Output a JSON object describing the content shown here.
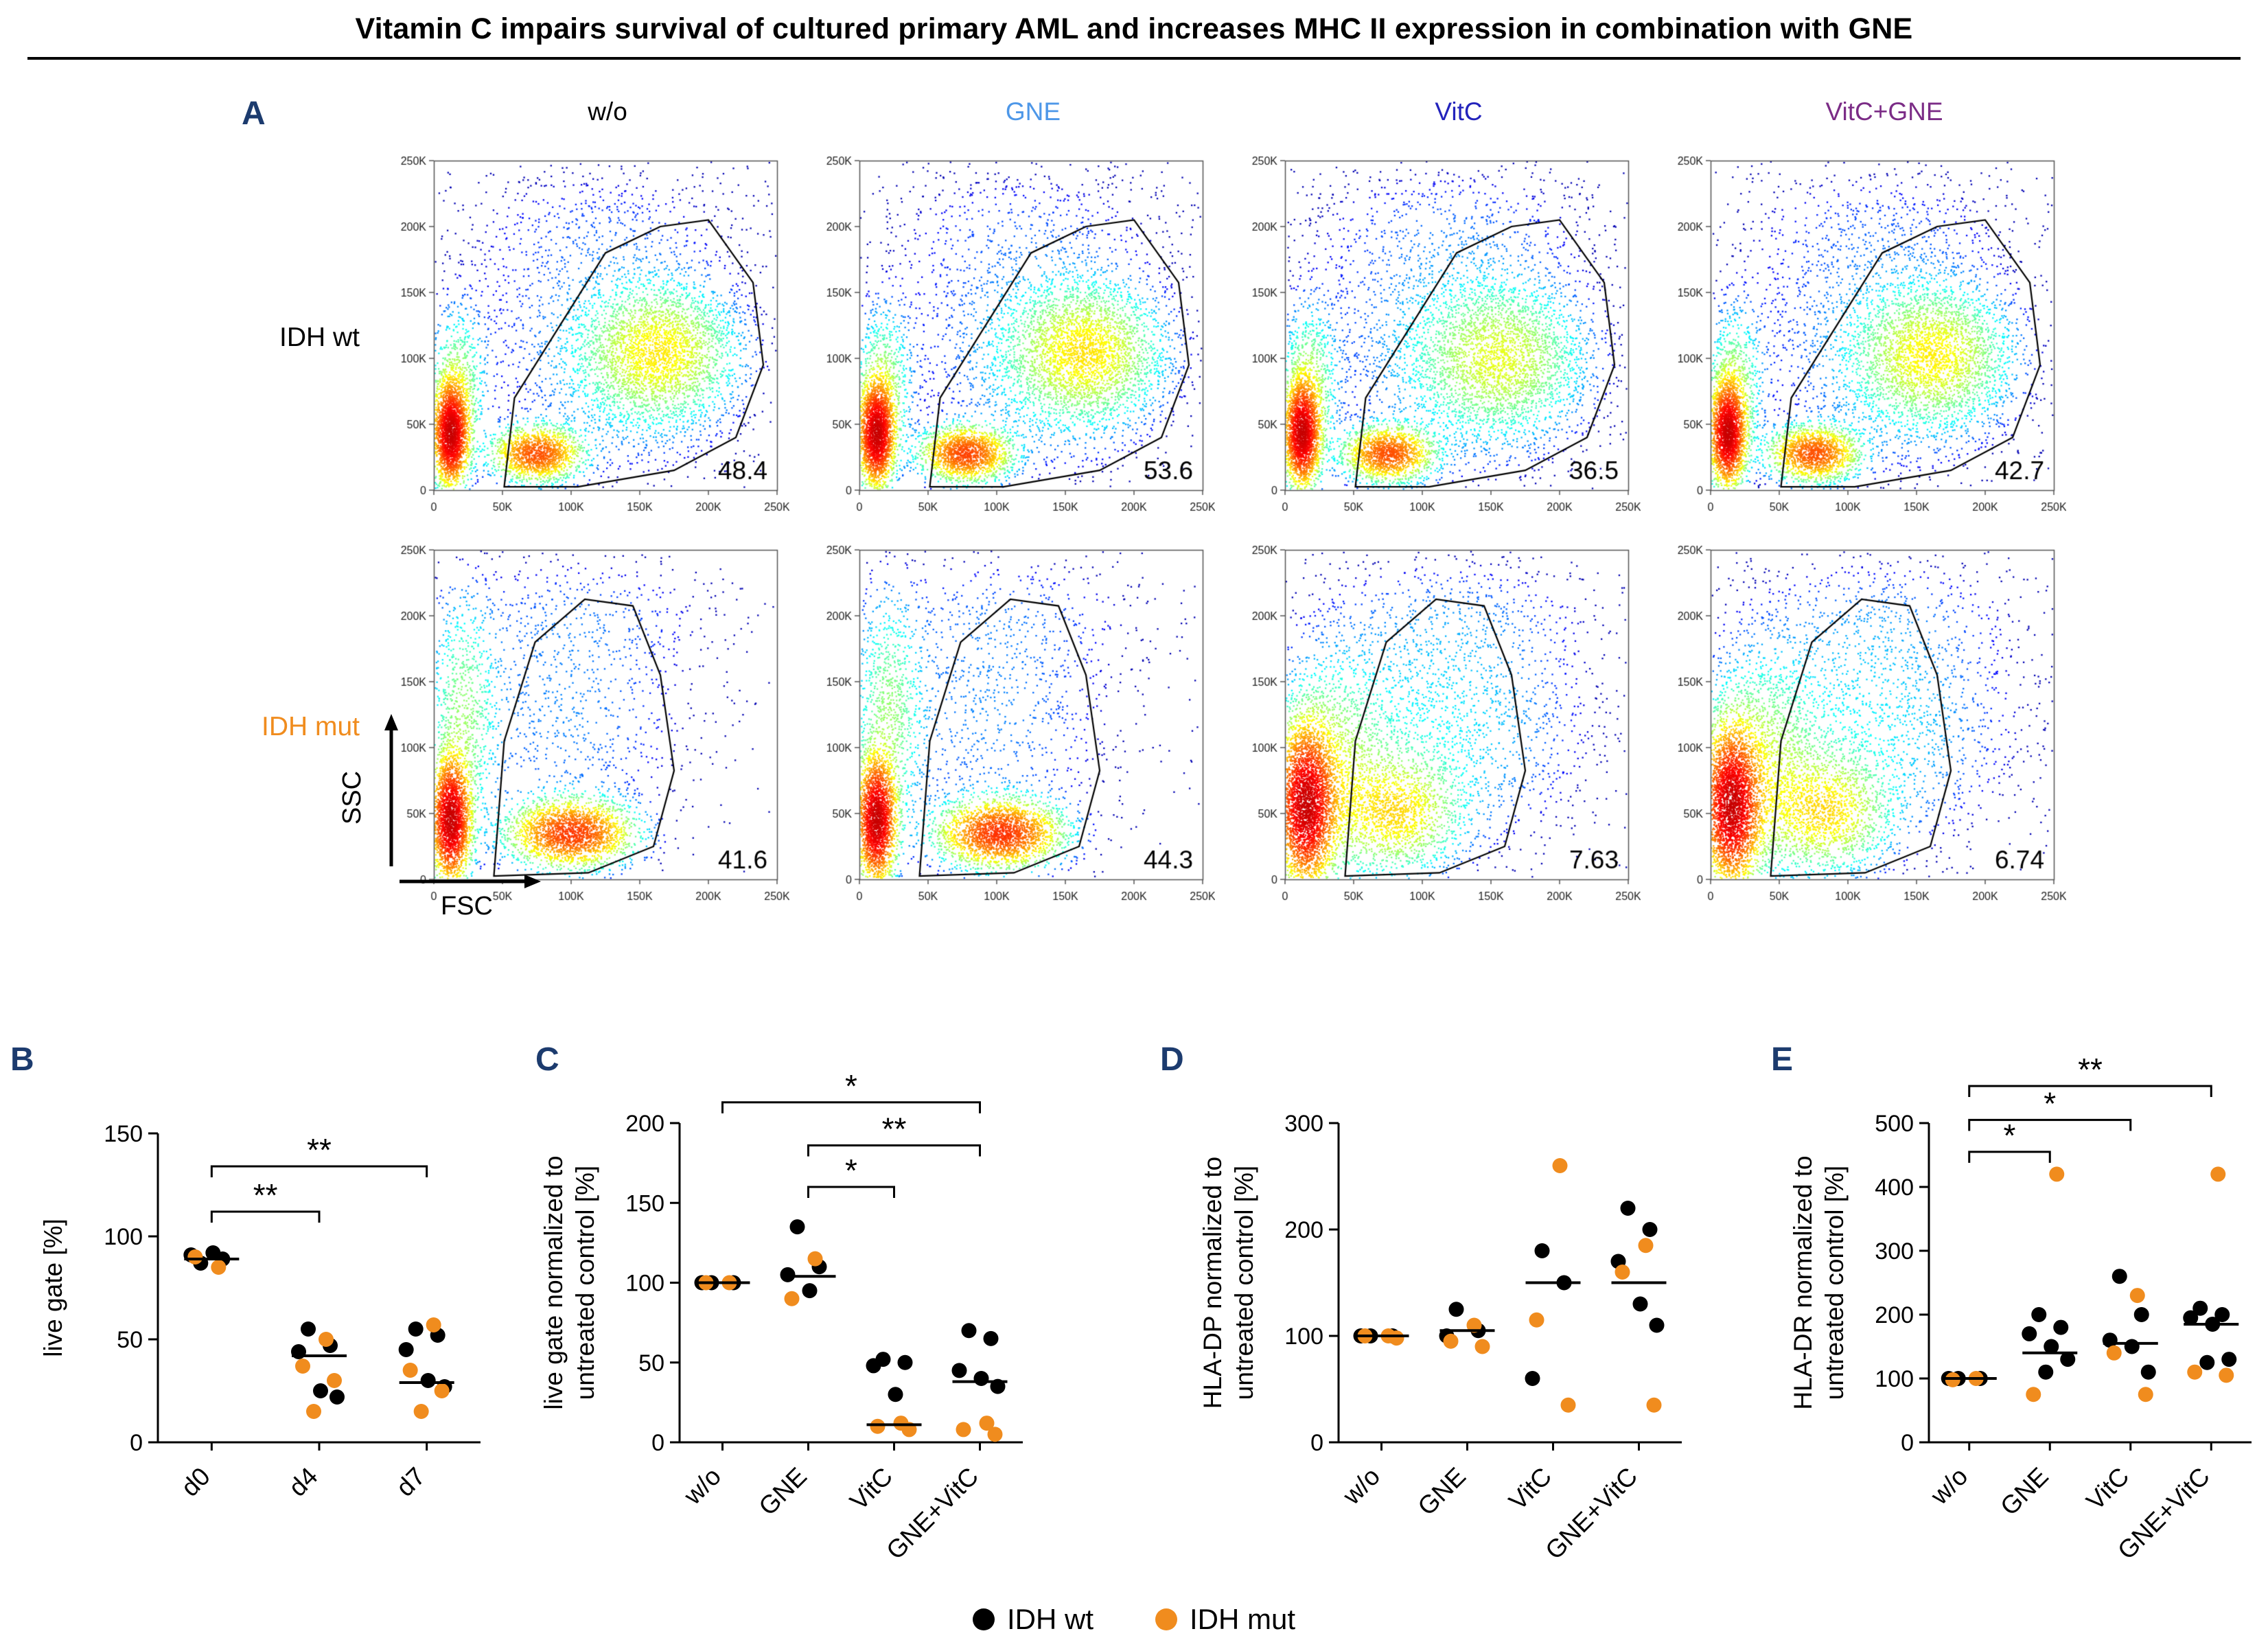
{
  "title": "Vitamin C impairs survival of cultured primary AML and increases MHC II expression in combination with GNE",
  "legend": [
    {
      "label": "IDH wt",
      "color": "#000000"
    },
    {
      "label": "IDH mut",
      "color": "#F08C1E"
    }
  ],
  "chart_data": [
    {
      "panel": "A",
      "type": "flow_density_grid",
      "xlabel": "FSC",
      "ylabel": "SSC",
      "axis_ticks": [
        "0",
        "50K",
        "100K",
        "150K",
        "200K",
        "250K"
      ],
      "axis_range": [
        0,
        250000
      ],
      "columns": [
        {
          "label": "w/o",
          "color": "#000000"
        },
        {
          "label": "GNE",
          "color": "#4D97E8"
        },
        {
          "label": "VitC",
          "color": "#2323BC"
        },
        {
          "label": "VitC+GNE",
          "color": "#7B2C86"
        }
      ],
      "rows": [
        {
          "label": "IDH wt",
          "color": "#000000"
        },
        {
          "label": "IDH mut",
          "color": "#F08C1E"
        }
      ],
      "gate_percent": [
        [
          "48.4",
          "53.6",
          "36.5",
          "42.7"
        ],
        [
          "41.6",
          "44.3",
          "7.63",
          "6.74"
        ]
      ],
      "gates": {
        "r1": [
          [
            0.205,
            0.01
          ],
          [
            0.235,
            0.28
          ],
          [
            0.5,
            0.72
          ],
          [
            0.66,
            0.8
          ],
          [
            0.8,
            0.82
          ],
          [
            0.93,
            0.63
          ],
          [
            0.96,
            0.38
          ],
          [
            0.88,
            0.16
          ],
          [
            0.7,
            0.06
          ],
          [
            0.42,
            0.01
          ]
        ],
        "r2": [
          [
            0.175,
            0.01
          ],
          [
            0.205,
            0.42
          ],
          [
            0.295,
            0.72
          ],
          [
            0.44,
            0.85
          ],
          [
            0.58,
            0.83
          ],
          [
            0.66,
            0.62
          ],
          [
            0.7,
            0.33
          ],
          [
            0.64,
            0.1
          ],
          [
            0.45,
            0.02
          ]
        ]
      },
      "plots": [
        [
          {
            "gate": "r1",
            "clusters": [
              {
                "x": 0.05,
                "y": 0.17,
                "sx": 0.028,
                "sy": 0.085,
                "n": 2200
              },
              {
                "x": 0.07,
                "y": 0.32,
                "sx": 0.045,
                "sy": 0.13,
                "n": 650
              },
              {
                "x": 0.3,
                "y": 0.11,
                "sx": 0.07,
                "sy": 0.045,
                "n": 1500
              },
              {
                "x": 0.66,
                "y": 0.42,
                "sx": 0.12,
                "sy": 0.11,
                "n": 2300
              },
              {
                "x": 0.6,
                "y": 0.35,
                "sx": 0.17,
                "sy": 0.17,
                "n": 900
              },
              {
                "x": 0.45,
                "y": 0.52,
                "sx": 0.27,
                "sy": 0.25,
                "n": 1300
              },
              {
                "x": 0.5,
                "y": 0.82,
                "sx": 0.3,
                "sy": 0.11,
                "n": 300
              }
            ]
          },
          {
            "gate": "r1",
            "clusters": [
              {
                "x": 0.05,
                "y": 0.17,
                "sx": 0.028,
                "sy": 0.085,
                "n": 2200
              },
              {
                "x": 0.07,
                "y": 0.32,
                "sx": 0.045,
                "sy": 0.13,
                "n": 650
              },
              {
                "x": 0.31,
                "y": 0.11,
                "sx": 0.07,
                "sy": 0.045,
                "n": 1600
              },
              {
                "x": 0.66,
                "y": 0.42,
                "sx": 0.12,
                "sy": 0.11,
                "n": 2400
              },
              {
                "x": 0.6,
                "y": 0.35,
                "sx": 0.17,
                "sy": 0.17,
                "n": 900
              },
              {
                "x": 0.45,
                "y": 0.52,
                "sx": 0.27,
                "sy": 0.25,
                "n": 1300
              },
              {
                "x": 0.5,
                "y": 0.82,
                "sx": 0.3,
                "sy": 0.11,
                "n": 300
              }
            ]
          },
          {
            "gate": "r1",
            "clusters": [
              {
                "x": 0.05,
                "y": 0.17,
                "sx": 0.028,
                "sy": 0.085,
                "n": 2200
              },
              {
                "x": 0.07,
                "y": 0.32,
                "sx": 0.045,
                "sy": 0.13,
                "n": 700
              },
              {
                "x": 0.3,
                "y": 0.11,
                "sx": 0.07,
                "sy": 0.045,
                "n": 1500
              },
              {
                "x": 0.63,
                "y": 0.4,
                "sx": 0.13,
                "sy": 0.12,
                "n": 2000
              },
              {
                "x": 0.58,
                "y": 0.34,
                "sx": 0.18,
                "sy": 0.18,
                "n": 900
              },
              {
                "x": 0.45,
                "y": 0.52,
                "sx": 0.27,
                "sy": 0.25,
                "n": 1600
              },
              {
                "x": 0.5,
                "y": 0.82,
                "sx": 0.3,
                "sy": 0.11,
                "n": 320
              }
            ]
          },
          {
            "gate": "r1",
            "clusters": [
              {
                "x": 0.05,
                "y": 0.17,
                "sx": 0.028,
                "sy": 0.085,
                "n": 2200
              },
              {
                "x": 0.07,
                "y": 0.32,
                "sx": 0.045,
                "sy": 0.13,
                "n": 650
              },
              {
                "x": 0.3,
                "y": 0.11,
                "sx": 0.07,
                "sy": 0.045,
                "n": 1500
              },
              {
                "x": 0.65,
                "y": 0.41,
                "sx": 0.12,
                "sy": 0.11,
                "n": 2200
              },
              {
                "x": 0.6,
                "y": 0.35,
                "sx": 0.17,
                "sy": 0.17,
                "n": 900
              },
              {
                "x": 0.45,
                "y": 0.52,
                "sx": 0.27,
                "sy": 0.25,
                "n": 1400
              },
              {
                "x": 0.5,
                "y": 0.82,
                "sx": 0.3,
                "sy": 0.11,
                "n": 300
              }
            ]
          }
        ],
        [
          {
            "gate": "r2",
            "clusters": [
              {
                "x": 0.05,
                "y": 0.18,
                "sx": 0.03,
                "sy": 0.1,
                "n": 2300
              },
              {
                "x": 0.085,
                "y": 0.5,
                "sx": 0.055,
                "sy": 0.2,
                "n": 800
              },
              {
                "x": 0.4,
                "y": 0.14,
                "sx": 0.095,
                "sy": 0.055,
                "n": 2200
              },
              {
                "x": 0.38,
                "y": 0.5,
                "sx": 0.24,
                "sy": 0.25,
                "n": 1100
              },
              {
                "x": 0.45,
                "y": 0.82,
                "sx": 0.28,
                "sy": 0.11,
                "n": 250
              }
            ]
          },
          {
            "gate": "r2",
            "clusters": [
              {
                "x": 0.05,
                "y": 0.18,
                "sx": 0.03,
                "sy": 0.1,
                "n": 2300
              },
              {
                "x": 0.085,
                "y": 0.5,
                "sx": 0.055,
                "sy": 0.2,
                "n": 800
              },
              {
                "x": 0.41,
                "y": 0.14,
                "sx": 0.095,
                "sy": 0.055,
                "n": 2300
              },
              {
                "x": 0.38,
                "y": 0.5,
                "sx": 0.24,
                "sy": 0.25,
                "n": 1100
              },
              {
                "x": 0.45,
                "y": 0.82,
                "sx": 0.28,
                "sy": 0.11,
                "n": 250
              }
            ]
          },
          {
            "gate": "r2",
            "clusters": [
              {
                "x": 0.06,
                "y": 0.22,
                "sx": 0.045,
                "sy": 0.13,
                "n": 3000
              },
              {
                "x": 0.13,
                "y": 0.32,
                "sx": 0.1,
                "sy": 0.19,
                "n": 1600
              },
              {
                "x": 0.33,
                "y": 0.2,
                "sx": 0.1,
                "sy": 0.1,
                "n": 1300
              },
              {
                "x": 0.45,
                "y": 0.47,
                "sx": 0.26,
                "sy": 0.24,
                "n": 2100
              },
              {
                "x": 0.5,
                "y": 0.82,
                "sx": 0.3,
                "sy": 0.11,
                "n": 300
              }
            ]
          },
          {
            "gate": "r2",
            "clusters": [
              {
                "x": 0.06,
                "y": 0.22,
                "sx": 0.045,
                "sy": 0.13,
                "n": 3000
              },
              {
                "x": 0.14,
                "y": 0.33,
                "sx": 0.1,
                "sy": 0.19,
                "n": 1600
              },
              {
                "x": 0.34,
                "y": 0.2,
                "sx": 0.1,
                "sy": 0.1,
                "n": 1300
              },
              {
                "x": 0.46,
                "y": 0.47,
                "sx": 0.26,
                "sy": 0.24,
                "n": 2100
              },
              {
                "x": 0.5,
                "y": 0.82,
                "sx": 0.3,
                "sy": 0.11,
                "n": 300
              }
            ]
          }
        ]
      ]
    },
    {
      "panel": "B",
      "type": "scatter",
      "ylabel": [
        "live gate [%]"
      ],
      "ylim": [
        0,
        150
      ],
      "yticks": [
        0,
        50,
        100,
        150
      ],
      "categories": [
        "d0",
        "d4",
        "d7"
      ],
      "series": [
        {
          "name": "IDH wt",
          "color": "#000000",
          "values": [
            [
              87,
              89,
              91,
              92
            ],
            [
              55,
              47,
              44,
              25,
              22
            ],
            [
              55,
              52,
              45,
              30,
              27
            ]
          ]
        },
        {
          "name": "IDH mut",
          "color": "#F08C1E",
          "values": [
            [
              85,
              90
            ],
            [
              50,
              37,
              30,
              15
            ],
            [
              57,
              35,
              25,
              15
            ]
          ]
        }
      ],
      "medians": [
        89,
        42,
        29
      ],
      "brackets": [
        {
          "from": 0,
          "to": 1,
          "label": "**",
          "y": 112
        },
        {
          "from": 0,
          "to": 2,
          "label": "**",
          "y": 134
        }
      ]
    },
    {
      "panel": "C",
      "type": "scatter",
      "ylabel": [
        "live gate normalized to",
        "untreated control [%]"
      ],
      "ylim": [
        0,
        200
      ],
      "yticks": [
        0,
        50,
        100,
        150,
        200
      ],
      "categories": [
        "w/o",
        "GNE",
        "VitC",
        "GNE+VitC"
      ],
      "series": [
        {
          "name": "IDH wt",
          "color": "#000000",
          "values": [
            [
              100,
              100,
              100
            ],
            [
              135,
              110,
              105,
              95
            ],
            [
              52,
              50,
              48,
              30
            ],
            [
              70,
              65,
              45,
              40,
              35
            ]
          ]
        },
        {
          "name": "IDH mut",
          "color": "#F08C1E",
          "values": [
            [
              100,
              100
            ],
            [
              115,
              90
            ],
            [
              12,
              10,
              8
            ],
            [
              12,
              8,
              5
            ]
          ]
        }
      ],
      "medians": [
        100,
        104,
        11,
        38
      ],
      "brackets": [
        {
          "from": 1,
          "to": 2,
          "label": "*",
          "y": 160
        },
        {
          "from": 1,
          "to": 3,
          "label": "**",
          "y": 186
        },
        {
          "from": 0,
          "to": 3,
          "label": "*",
          "y": 213
        }
      ]
    },
    {
      "panel": "D",
      "type": "scatter",
      "ylabel": [
        "HLA-DP normalized to",
        "untreated control [%]"
      ],
      "ylim": [
        0,
        300
      ],
      "yticks": [
        0,
        100,
        200,
        300
      ],
      "categories": [
        "w/o",
        "GNE",
        "VitC",
        "GNE+VitC"
      ],
      "series": [
        {
          "name": "IDH wt",
          "color": "#000000",
          "values": [
            [
              100,
              100,
              100
            ],
            [
              125,
              105,
              100
            ],
            [
              180,
              150,
              60
            ],
            [
              220,
              200,
              170,
              130,
              110
            ]
          ]
        },
        {
          "name": "IDH mut",
          "color": "#F08C1E",
          "values": [
            [
              100,
              100,
              98
            ],
            [
              110,
              95,
              90
            ],
            [
              260,
              115,
              35
            ],
            [
              185,
              160,
              35
            ]
          ]
        }
      ],
      "medians": [
        100,
        105,
        150,
        150
      ],
      "brackets": []
    },
    {
      "panel": "E",
      "type": "scatter",
      "ylabel": [
        "HLA-DR normalized to",
        "untreated control [%]"
      ],
      "ylim": [
        0,
        500
      ],
      "yticks": [
        0,
        100,
        200,
        300,
        400,
        500
      ],
      "categories": [
        "w/o",
        "GNE",
        "VitC",
        "GNE+VitC"
      ],
      "series": [
        {
          "name": "IDH wt",
          "color": "#000000",
          "values": [
            [
              100,
              100,
              100
            ],
            [
              200,
              180,
              170,
              150,
              130,
              110
            ],
            [
              260,
              200,
              160,
              150,
              110
            ],
            [
              210,
              200,
              195,
              185,
              130,
              125
            ]
          ]
        },
        {
          "name": "IDH mut",
          "color": "#F08C1E",
          "values": [
            [
              100,
              98
            ],
            [
              420,
              75
            ],
            [
              230,
              140,
              75
            ],
            [
              420,
              110,
              105
            ]
          ]
        }
      ],
      "medians": [
        100,
        140,
        155,
        185
      ],
      "brackets": [
        {
          "from": 0,
          "to": 1,
          "label": "*",
          "y": 455
        },
        {
          "from": 0,
          "to": 2,
          "label": "*",
          "y": 505
        },
        {
          "from": 0,
          "to": 3,
          "label": "**",
          "y": 558
        }
      ]
    }
  ]
}
